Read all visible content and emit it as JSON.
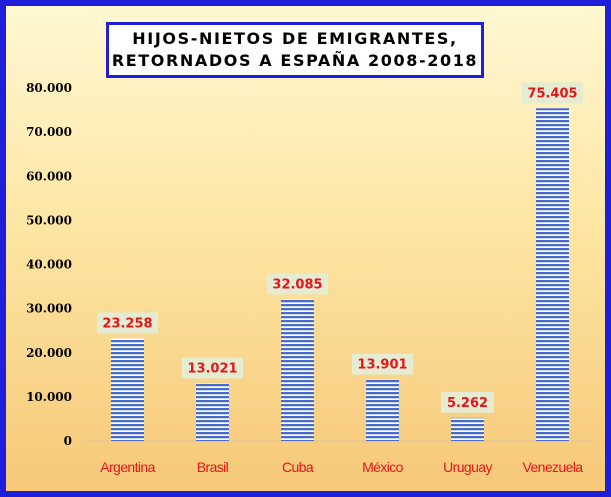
{
  "chart_data": {
    "type": "bar",
    "title_lines": [
      "HIJOS-NIETOS DE EMIGRANTES,",
      "RETORNADOS A ESPAÑA 2008-2018"
    ],
    "categories": [
      "Argentina",
      "Brasil",
      "Cuba",
      "México",
      "Uruguay",
      "Venezuela"
    ],
    "values": [
      23258,
      13021,
      32085,
      13901,
      5262,
      75405
    ],
    "data_labels": [
      "23.258",
      "13.021",
      "32.085",
      "13.901",
      "5.262",
      "75.405"
    ],
    "y_ticks": [
      0,
      10000,
      20000,
      30000,
      40000,
      50000,
      60000,
      70000,
      80000
    ],
    "y_tick_labels": [
      "0",
      "10.000",
      "20.000",
      "30.000",
      "40.000",
      "50.000",
      "60.000",
      "70.000",
      "80.000"
    ],
    "ylim": [
      0,
      80000
    ],
    "xlabel": "",
    "ylabel": "",
    "grid": false,
    "legend": "none",
    "colors": {
      "frame_border": "#1f1fd9",
      "bar_fill": "#4a6cc8",
      "bar_stripe": "#ffffff",
      "label_box": "#e6ecd2",
      "label_text": "#e8141a",
      "tick_text": "#e8141a"
    }
  }
}
